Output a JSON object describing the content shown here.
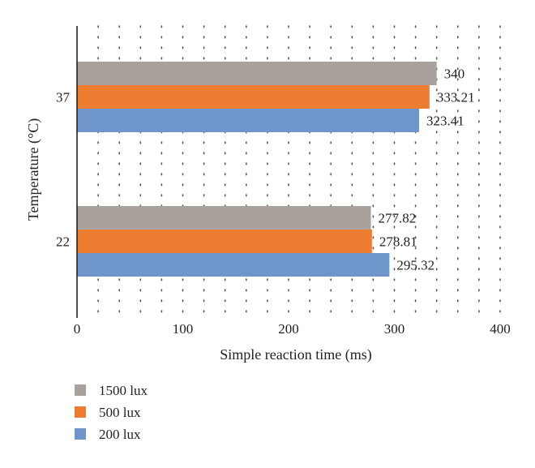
{
  "chart_data": {
    "type": "bar",
    "orientation": "horizontal",
    "title": "",
    "xlabel": "Simple reaction time (ms)",
    "ylabel": "Temperature (°C)",
    "xlim": [
      0,
      400
    ],
    "xticks": [
      0,
      100,
      200,
      300,
      400
    ],
    "categories": [
      "37",
      "22"
    ],
    "series": [
      {
        "name": "1500 lux",
        "color": "#A9A19C",
        "values": [
          340,
          277.82
        ],
        "labels": [
          "340",
          "277.82"
        ]
      },
      {
        "name": "500 lux",
        "color": "#ED7D31",
        "values": [
          333.21,
          278.81
        ],
        "labels": [
          "333.21",
          "278.81"
        ]
      },
      {
        "name": "200 lux",
        "color": "#6F96CB",
        "values": [
          323.41,
          295.32
        ],
        "labels": [
          "323.41",
          "295.32"
        ]
      }
    ],
    "grid": "vertical-dotted",
    "legend_position": "bottom-left"
  }
}
